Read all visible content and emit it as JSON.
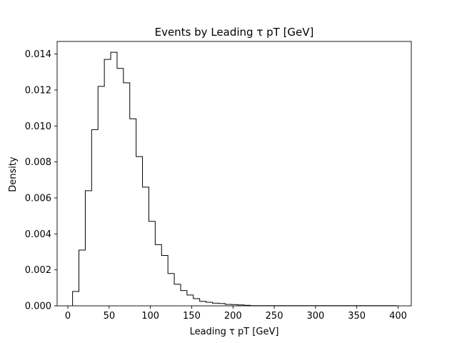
{
  "chart_data": {
    "type": "histogram",
    "title": "Events by Leading τ pT [GeV]",
    "xlabel": "Leading τ pT [GeV]",
    "ylabel": "Density",
    "xlim": [
      -13,
      416
    ],
    "ylim": [
      0,
      0.0147
    ],
    "x_ticks": [
      0,
      50,
      100,
      150,
      200,
      250,
      300,
      350,
      400
    ],
    "y_ticks": [
      0.0,
      0.002,
      0.004,
      0.006,
      0.008,
      0.01,
      0.012,
      0.014
    ],
    "y_tick_labels": [
      "0.000",
      "0.002",
      "0.004",
      "0.006",
      "0.008",
      "0.010",
      "0.012",
      "0.014"
    ],
    "bin_edges": [
      5.7,
      13.4,
      21.1,
      28.8,
      36.5,
      44.2,
      51.9,
      59.6,
      67.3,
      75.0,
      82.7,
      90.4,
      98.1,
      105.8,
      113.5,
      121.2,
      128.9,
      136.6,
      144.3,
      152.0,
      159.7,
      167.4,
      175.1,
      182.8,
      190.5,
      198.2,
      205.9,
      213.6,
      221.3,
      229.0,
      236.7,
      244.4,
      252.1,
      259.8,
      267.5,
      275.2,
      282.9,
      290.6,
      298.3,
      306.0,
      313.7,
      321.4,
      329.1,
      336.8,
      344.5,
      352.2,
      359.9,
      367.6,
      375.3,
      383.0,
      390.7,
      398.4
    ],
    "values": [
      0.0008,
      0.0031,
      0.0064,
      0.0098,
      0.0122,
      0.0137,
      0.0141,
      0.0132,
      0.0124,
      0.0104,
      0.0083,
      0.0066,
      0.0047,
      0.0034,
      0.0028,
      0.0018,
      0.0012,
      0.00085,
      0.0006,
      0.0004,
      0.00025,
      0.0002,
      0.00015,
      0.00013,
      8e-05,
      7e-05,
      5e-05,
      3e-05,
      1e-05,
      1e-05,
      1e-05,
      1e-05,
      1e-05,
      1e-05,
      1e-05,
      1e-05,
      1e-05,
      1e-05,
      1e-05,
      1e-05,
      1e-05,
      1e-05,
      1e-05,
      1e-05,
      1e-05,
      1e-05,
      1e-05,
      1e-05,
      1e-05,
      1e-05,
      1e-05
    ],
    "histtype": "step",
    "line_color": "#000000",
    "grid": false,
    "legend": "none"
  }
}
